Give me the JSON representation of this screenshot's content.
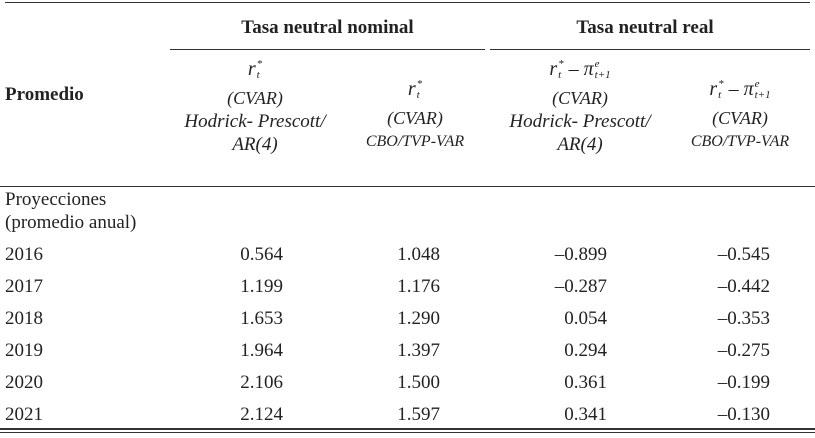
{
  "table": {
    "group_headers": [
      "Tasa neutral nominal",
      "Tasa neutral real"
    ],
    "row_header": "Promedio",
    "columns": [
      {
        "formula": [
          {
            "text": "r",
            "sup": "*",
            "sub": "t"
          }
        ],
        "model": "(CVAR)",
        "method": [
          "Hodrick- Prescott/",
          "AR(4)"
        ]
      },
      {
        "formula": [
          {
            "text": "r",
            "sup": "*",
            "sub": "t"
          }
        ],
        "model": "(CVAR)",
        "method": [
          "CBO/TVP-VAR"
        ]
      },
      {
        "formula": [
          {
            "text": "r",
            "sup": "*",
            "sub": "t"
          },
          {
            "text": " – π",
            "sup": "e",
            "sub": "t+1"
          }
        ],
        "model": "(CVAR)",
        "method": [
          "Hodrick- Prescott/",
          "AR(4)"
        ]
      },
      {
        "formula": [
          {
            "text": "r",
            "sup": "*",
            "sub": "t"
          },
          {
            "text": " – π",
            "sup": "e",
            "sub": "t+1"
          }
        ],
        "model": "(CVAR)",
        "method": [
          "CBO/TVP-VAR"
        ]
      }
    ],
    "section": [
      "Proyecciones",
      "(promedio anual)"
    ],
    "rows": [
      [
        "2016",
        "0.564",
        "1.048",
        "–0.899",
        "–0.545"
      ],
      [
        "2017",
        "1.199",
        "1.176",
        "–0.287",
        "–0.442"
      ],
      [
        "2018",
        "1.653",
        "1.290",
        "0.054",
        "–0.353"
      ],
      [
        "2019",
        "1.964",
        "1.397",
        "0.294",
        "–0.275"
      ],
      [
        "2020",
        "2.106",
        "1.500",
        "0.361",
        "–0.199"
      ],
      [
        "2021",
        "2.124",
        "1.597",
        "0.341",
        "–0.130"
      ]
    ]
  }
}
